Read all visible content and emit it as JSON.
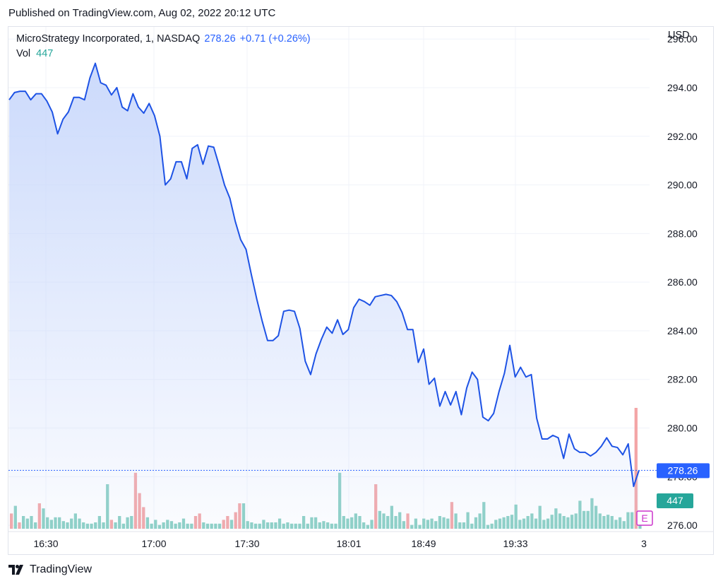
{
  "header": {
    "published": "Published on TradingView.com, Aug 02, 2022 20:12 UTC"
  },
  "legend": {
    "symbol": "MicroStrategy Incorporated, 1, NASDAQ",
    "price": "278.26",
    "change": "+0.71 (+0.26%)",
    "vol_label": "Vol",
    "vol_value": "447"
  },
  "axis": {
    "currency": "USD",
    "last_price_label": "278.26",
    "last_volume_label": "447",
    "earnings_marker": "E"
  },
  "footer": {
    "brand": "TradingView"
  },
  "colors": {
    "line": "#1e53e5",
    "area_top": "#c9d8fb",
    "up_volume": "#89cfc3",
    "down_volume": "#f3a5a6",
    "price_badge": "#2962ff",
    "volume_badge": "#26a69a",
    "earnings": "#cc33cc"
  },
  "chart_data": {
    "type": "area",
    "ylim": [
      275.8,
      296.5
    ],
    "y_ticks": [
      "296.00",
      "294.00",
      "292.00",
      "290.00",
      "288.00",
      "286.00",
      "284.00",
      "282.00",
      "280.00",
      "278.00",
      "276.00"
    ],
    "x_ticks": [
      "16:30",
      "17:00",
      "17:30",
      "18:01",
      "18:49",
      "19:33",
      "3"
    ],
    "last_price": 278.26,
    "series": [
      {
        "values": [
          293.5,
          293.8,
          293.85,
          293.85,
          293.5,
          293.75,
          293.75,
          293.45,
          293.0,
          292.1,
          292.7,
          293.0,
          293.6,
          293.6,
          293.5,
          294.4,
          295.0,
          294.2,
          294.1,
          293.7,
          294.0,
          293.2,
          293.05,
          293.75,
          293.2,
          292.95,
          293.35,
          292.85,
          292.0,
          290.0,
          290.25,
          290.95,
          290.95,
          290.25,
          291.5,
          291.65,
          290.85,
          291.6,
          291.55,
          290.8,
          290.0,
          289.45,
          288.5,
          287.75,
          287.35,
          286.3,
          285.3,
          284.4,
          283.6,
          283.6,
          283.8,
          284.8,
          284.85,
          284.8,
          284.1,
          282.75,
          282.2,
          283.05,
          283.65,
          284.15,
          283.9,
          284.45,
          283.85,
          284.05,
          284.95,
          285.3,
          285.2,
          285.05,
          285.4,
          285.45,
          285.5,
          285.45,
          285.2,
          284.75,
          284.05,
          284.05,
          282.7,
          283.25,
          281.8,
          282.05,
          280.9,
          281.5,
          280.95,
          281.5,
          280.55,
          281.65,
          282.3,
          282.0,
          280.45,
          280.3,
          280.6,
          281.5,
          282.25,
          283.4,
          282.1,
          282.5,
          282.1,
          282.2,
          280.4,
          279.55,
          279.55,
          279.7,
          279.6,
          278.75,
          279.75,
          279.15,
          279.0,
          279.0,
          278.85,
          279.0,
          279.25,
          279.6,
          279.25,
          279.2,
          278.9,
          279.35,
          277.6,
          278.26
        ]
      }
    ],
    "volume": {
      "ylim": [
        0,
        50
      ],
      "values": [
        12,
        18,
        5,
        10,
        8,
        10,
        5,
        20,
        16,
        9,
        7,
        9,
        9,
        6,
        5,
        8,
        12,
        8,
        5,
        4,
        4,
        5,
        10,
        5,
        35,
        7,
        5,
        10,
        4,
        9,
        10,
        44,
        28,
        17,
        9,
        4,
        7,
        3,
        5,
        7,
        6,
        4,
        5,
        8,
        4,
        4,
        10,
        12,
        5,
        4,
        4,
        4,
        4,
        7,
        10,
        7,
        13,
        20,
        20,
        6,
        5,
        4,
        4,
        7,
        5,
        5,
        5,
        8,
        4,
        5,
        4,
        4,
        4,
        10,
        4,
        9,
        9,
        5,
        6,
        5,
        4,
        4,
        44,
        10,
        8,
        9,
        12,
        10,
        5,
        3,
        7,
        35,
        14,
        12,
        10,
        18,
        10,
        13,
        6,
        12,
        3,
        8,
        3,
        8,
        7,
        8,
        6,
        10,
        9,
        8,
        21,
        12,
        5,
        5,
        13,
        4,
        9,
        12,
        21,
        3,
        4,
        7,
        8,
        9,
        10,
        11,
        19,
        7,
        8,
        10,
        12,
        8,
        18,
        7,
        8,
        11,
        16,
        12,
        10,
        9,
        11,
        12,
        22,
        14,
        14,
        24,
        18,
        12,
        10,
        11,
        10,
        7,
        9,
        6,
        13,
        13,
        95,
        10
      ],
      "direction": [
        "d",
        "u",
        "d",
        "u",
        "u",
        "u",
        "u",
        "d",
        "u",
        "u",
        "u",
        "u",
        "u",
        "u",
        "u",
        "u",
        "u",
        "u",
        "u",
        "u",
        "u",
        "u",
        "u",
        "u",
        "u",
        "d",
        "u",
        "u",
        "u",
        "u",
        "u",
        "d",
        "d",
        "d",
        "u",
        "u",
        "u",
        "u",
        "u",
        "u",
        "u",
        "u",
        "u",
        "u",
        "u",
        "u",
        "d",
        "d",
        "u",
        "u",
        "u",
        "u",
        "u",
        "d",
        "d",
        "u",
        "d",
        "d",
        "u",
        "u",
        "u",
        "u",
        "u",
        "u",
        "u",
        "u",
        "u",
        "u",
        "u",
        "u",
        "u",
        "u",
        "u",
        "u",
        "u",
        "u",
        "u",
        "u",
        "u",
        "u",
        "u",
        "u",
        "u",
        "u",
        "u",
        "u",
        "u",
        "u",
        "u",
        "u",
        "u",
        "d",
        "u",
        "u",
        "u",
        "u",
        "u",
        "u",
        "u",
        "d",
        "u",
        "u",
        "u",
        "u",
        "u",
        "u",
        "u",
        "u",
        "u",
        "u",
        "d",
        "u",
        "u",
        "u",
        "u",
        "u",
        "u",
        "u",
        "u",
        "u",
        "u",
        "u",
        "u",
        "u",
        "u",
        "u",
        "u",
        "u",
        "u",
        "u",
        "u",
        "u",
        "u",
        "u",
        "u",
        "u",
        "u",
        "u",
        "u",
        "u",
        "u",
        "u",
        "u",
        "u",
        "u",
        "u",
        "u",
        "u",
        "u",
        "u",
        "u",
        "u",
        "u",
        "u",
        "u",
        "u",
        "d",
        "u"
      ]
    }
  }
}
